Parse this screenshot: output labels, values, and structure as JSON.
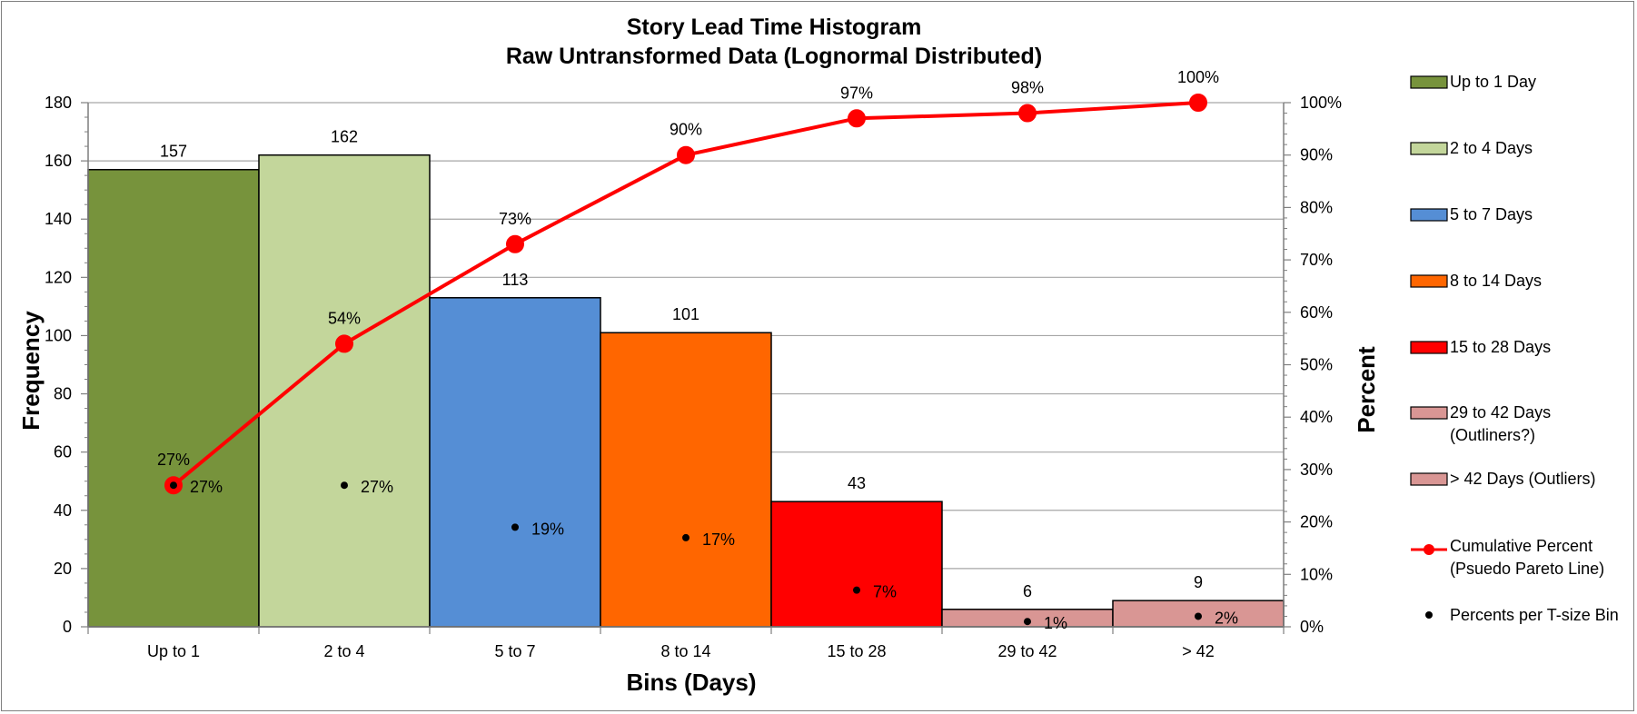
{
  "chart_data": {
    "type": "bar",
    "title": "Story Lead Time Histogram",
    "subtitle": "Raw Untransformed Data (Lognormal Distributed)",
    "xlabel": "Bins (Days)",
    "ylabel": "Frequency",
    "y2label": "Percent",
    "ylim": [
      0,
      180
    ],
    "y_ticks": [
      0,
      20,
      40,
      60,
      80,
      100,
      120,
      140,
      160,
      180
    ],
    "y2lim": [
      0,
      100
    ],
    "y2_ticks": [
      "0%",
      "10%",
      "20%",
      "30%",
      "40%",
      "50%",
      "60%",
      "70%",
      "80%",
      "90%",
      "100%"
    ],
    "grid": true,
    "legend_position": "right",
    "categories": [
      "Up to 1",
      "2 to 4",
      "5 to 7",
      "8 to 14",
      "15 to 28",
      "29 to 42",
      "> 42"
    ],
    "series": [
      {
        "kind": "bar",
        "values": [
          157,
          162,
          113,
          101,
          43,
          6,
          9
        ],
        "value_labels": [
          "157",
          "162",
          "113",
          "101",
          "43",
          "6",
          "9"
        ],
        "legend_names": [
          "Up to 1 Day",
          "2 to 4 Days",
          "5 to 7 Days",
          "8 to 14 Days",
          "15 to 28 Days",
          "29 to 42 Days (Outliners?)",
          "> 42 Days (Outliers)"
        ],
        "colors": [
          "#77933c",
          "#c3d69b",
          "#558ed5",
          "#ff6600",
          "#ff0000",
          "#d99694",
          "#d99694"
        ]
      },
      {
        "kind": "line",
        "axis": "right",
        "name": "Cumulative Percent (Psuedo Pareto Line)",
        "values": [
          27,
          54,
          73,
          90,
          97,
          98,
          100
        ],
        "value_labels": [
          "27%",
          "54%",
          "73%",
          "90%",
          "97%",
          "98%",
          "100%"
        ],
        "color": "#ff0000"
      },
      {
        "kind": "scatter",
        "axis": "right",
        "name": "Percents per T-size Bin",
        "values": [
          27,
          27,
          19,
          17,
          7,
          1,
          2
        ],
        "value_labels": [
          "27%",
          "27%",
          "19%",
          "17%",
          "7%",
          "1%",
          "2%"
        ],
        "color": "#000000"
      }
    ]
  }
}
